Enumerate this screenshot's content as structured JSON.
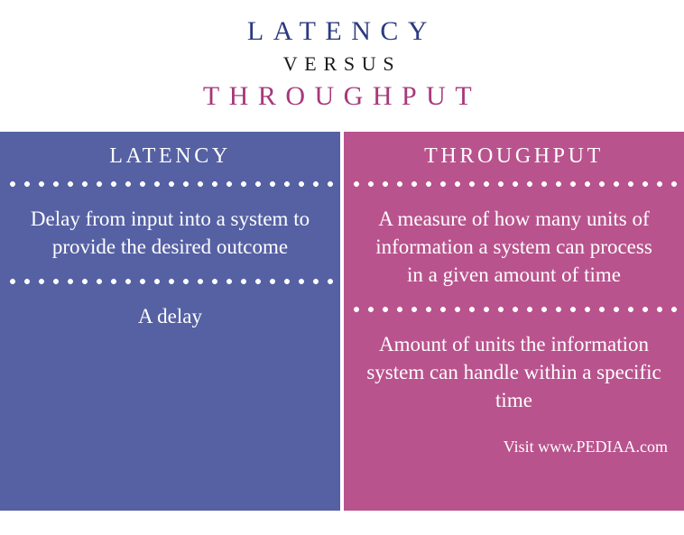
{
  "header": {
    "top": "LATENCY",
    "mid": "VERSUS",
    "bot": "THROUGHPUT",
    "top_color": "#2d3a82",
    "mid_color": "#1a1a1a",
    "bot_color": "#a6397a"
  },
  "left": {
    "title": "LATENCY",
    "bg_color": "#5661a4",
    "divider_color": "#ffffff",
    "rows": [
      "Delay from input into a system to provide the desired outcome",
      "A delay"
    ]
  },
  "right": {
    "title": "THROUGHPUT",
    "bg_color": "#b9538d",
    "divider_color": "#ffffff",
    "rows": [
      "A measure of how many units of information a system can process in a given amount of time",
      "Amount of units the information system can handle within a specific time"
    ]
  },
  "footer": {
    "text": "Visit www.PEDIAA.com"
  }
}
